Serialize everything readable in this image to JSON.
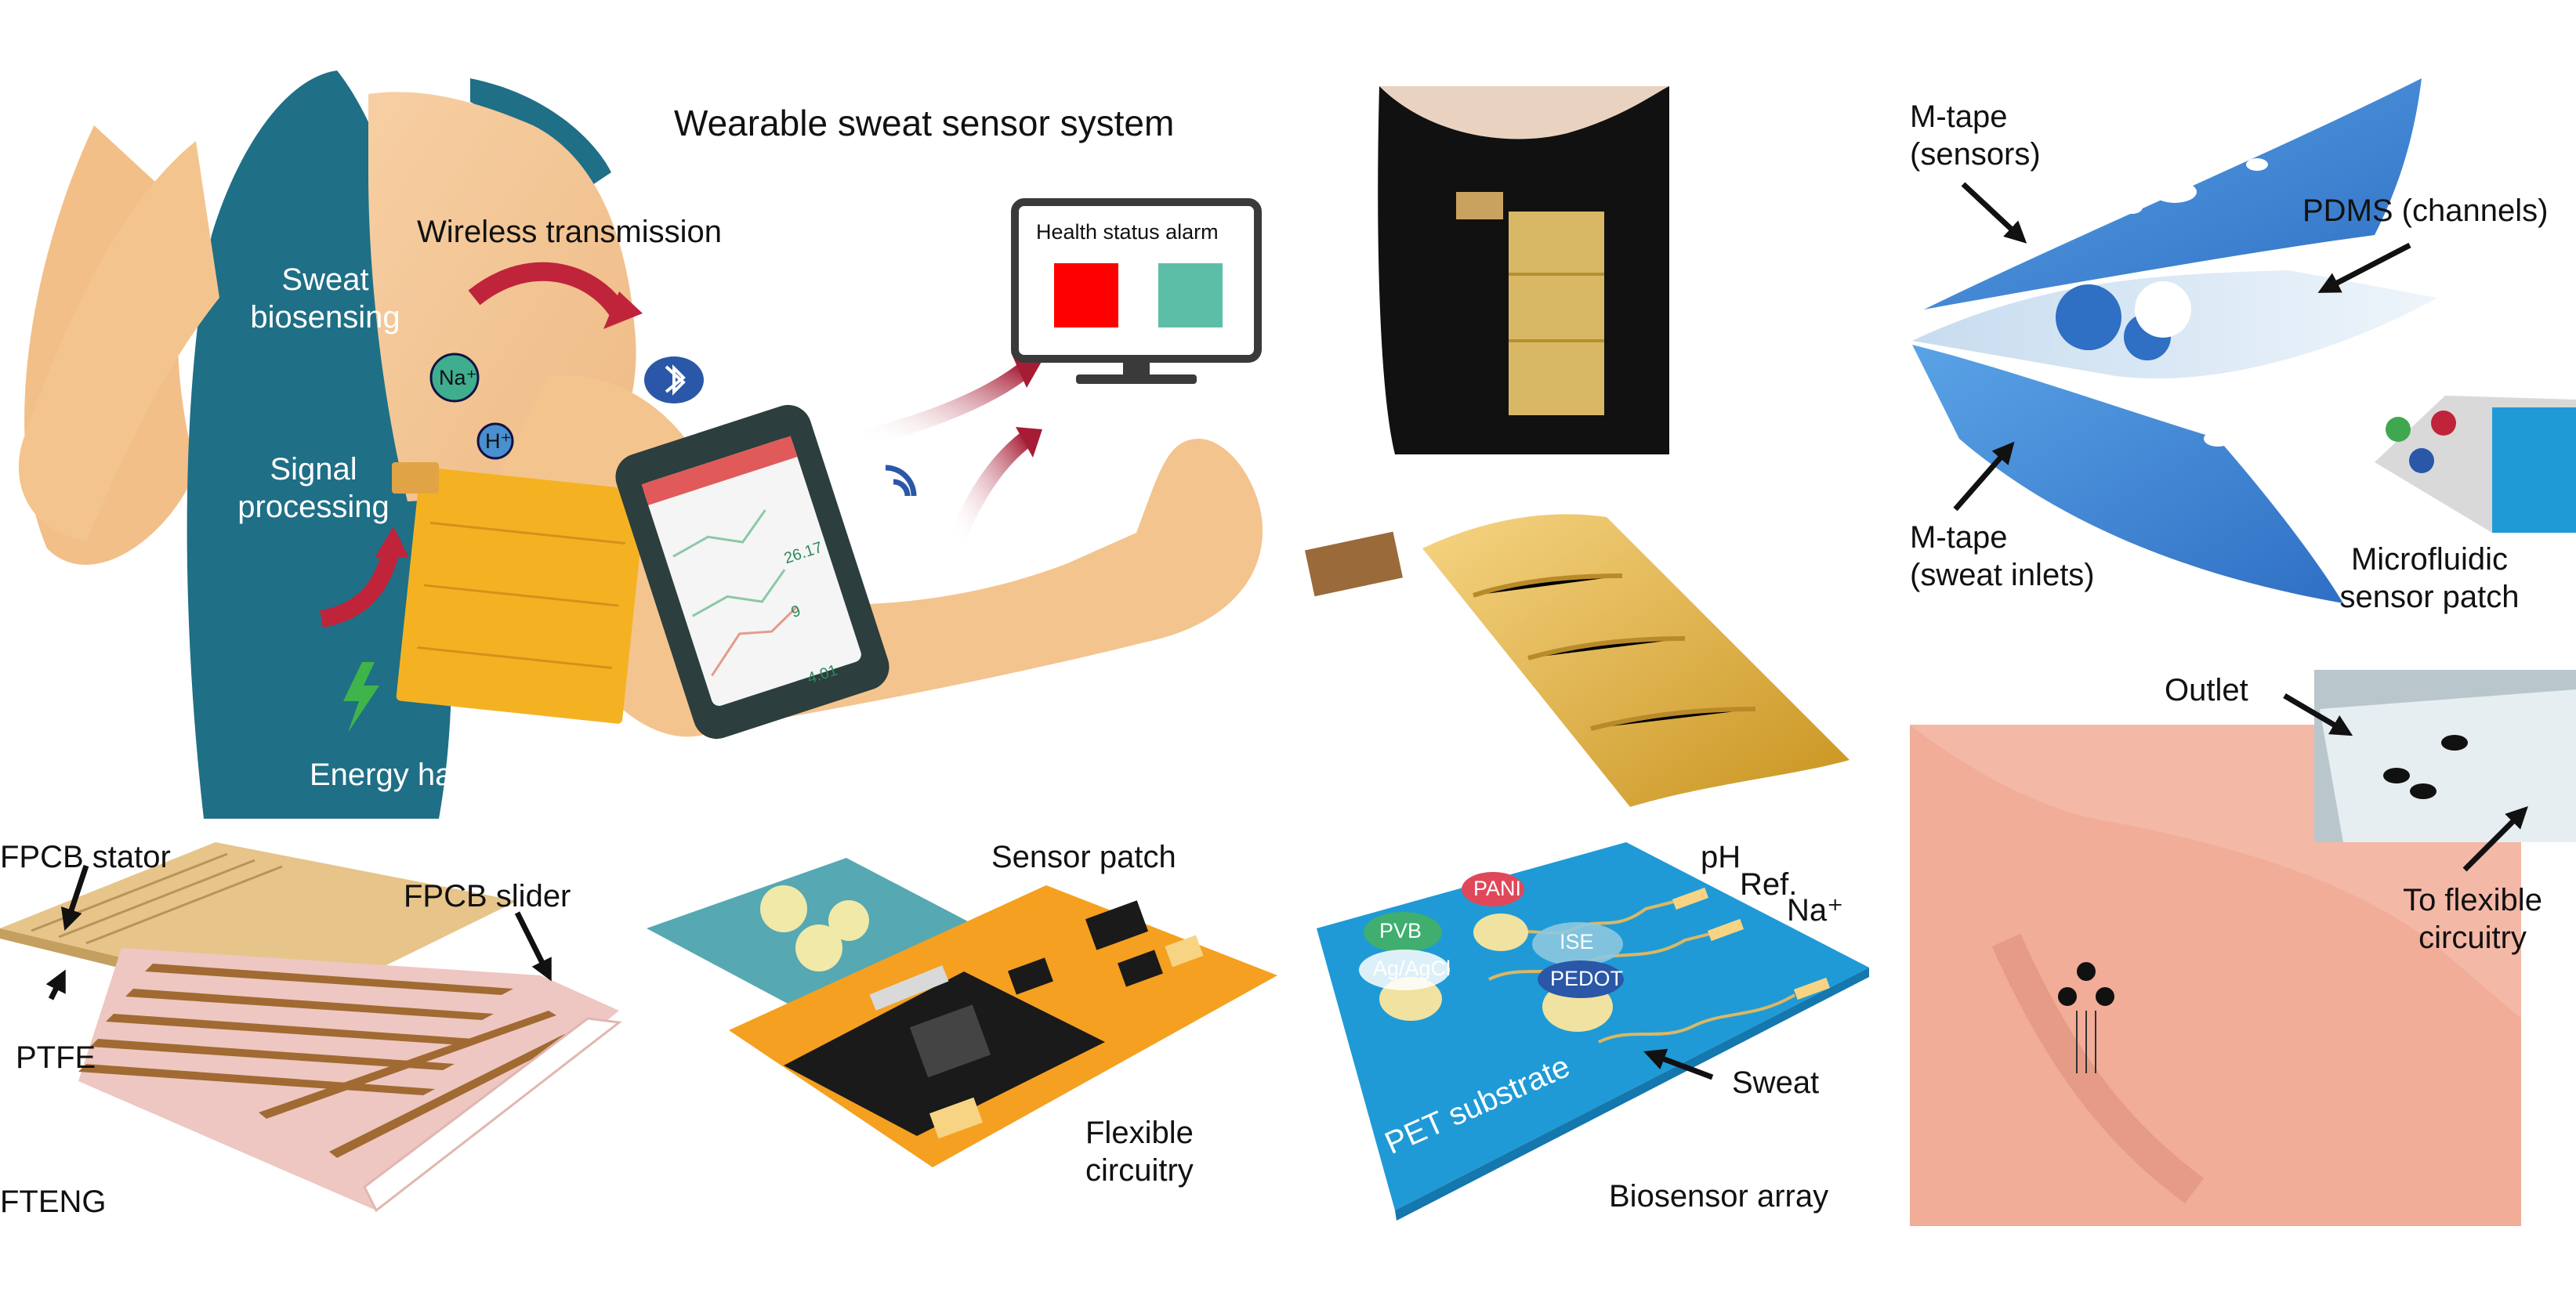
{
  "figure": {
    "title": "Wearable sweat sensor system",
    "body_panel": {
      "sweat_biosensing": [
        "Sweat",
        "biosensing"
      ],
      "wireless_transmission": "Wireless transmission",
      "signal_processing": [
        "Signal",
        "processing"
      ],
      "energy_harvesting": "Energy harvesting",
      "ions": [
        "Na⁺",
        "H⁺"
      ],
      "health_status_alarm": "Health status alarm",
      "phone_values": [
        "26.17",
        "9",
        "4.01"
      ]
    },
    "fteng": {
      "label": "FTENG",
      "stator": "FPCB stator",
      "slider": "FPCB slider",
      "ptfe": "PTFE"
    },
    "circuit": {
      "sensor_patch": "Sensor patch",
      "flexible_circuitry": [
        "Flexible",
        "circuitry"
      ]
    },
    "biosensor": {
      "array_label": "Biosensor array",
      "substrate": "PET substrate",
      "ph": "pH",
      "ref": "Ref.",
      "na": "Na⁺",
      "pvb": "PVB",
      "agagcl": "Ag/AgCl",
      "pani": "PANI",
      "ise": "ISE",
      "pedot": "PEDOT",
      "sweat": "Sweat"
    },
    "microfluidic": {
      "mtape_sensors": [
        "M-tape",
        "(sensors)"
      ],
      "pdms": "PDMS (channels)",
      "mtape_inlets": [
        "M-tape",
        "(sweat inlets)"
      ],
      "patch": [
        "Microfluidic",
        "sensor patch"
      ]
    },
    "shoulder": {
      "outlet": "Outlet",
      "to_flexible": [
        "To flexible",
        "circuitry"
      ]
    },
    "colors": {
      "skin": "#f4c48e",
      "shirt": "#1f6f86",
      "gold": "#f4b223",
      "orange_pcb": "#f5a020",
      "blue_pet": "#1f9ad6",
      "tape_blue": "#3f87d6",
      "alarm_red": "#ff0000",
      "alarm_teal": "#5bbfa7",
      "arrow_red": "#c0243a",
      "patch_teal": "#56a8b3"
    }
  }
}
